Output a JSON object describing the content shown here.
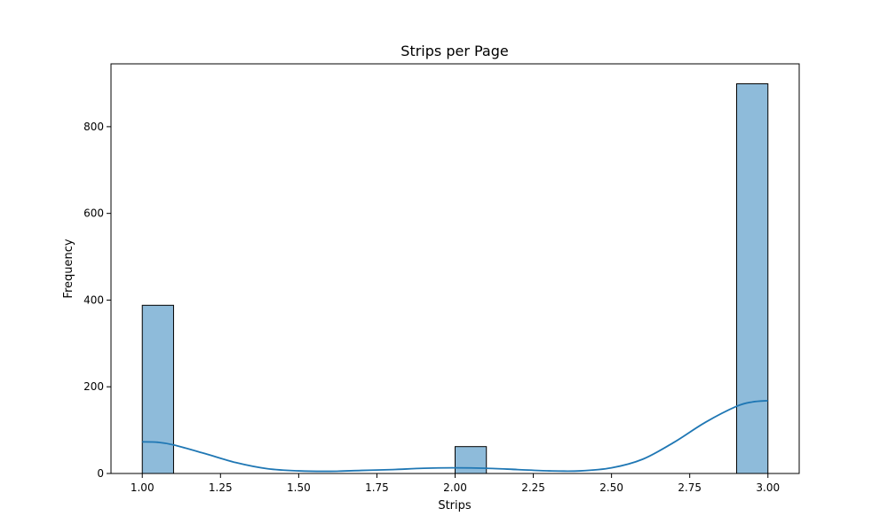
{
  "chart_data": {
    "type": "bar",
    "title": "Strips per Page",
    "xlabel": "Strips",
    "ylabel": "Frequency",
    "xlim": [
      0.9,
      3.1
    ],
    "ylim": [
      0,
      945
    ],
    "xticks": [
      "1.00",
      "1.25",
      "1.50",
      "1.75",
      "2.00",
      "2.25",
      "2.50",
      "2.75",
      "3.00"
    ],
    "yticks": [
      "0",
      "200",
      "400",
      "600",
      "800"
    ],
    "bins": [
      {
        "x0": 1.0,
        "x1": 1.1,
        "value": 388
      },
      {
        "x0": 2.0,
        "x1": 2.1,
        "value": 62
      },
      {
        "x0": 2.9,
        "x1": 3.0,
        "value": 899
      }
    ],
    "kde": {
      "x": [
        1.0,
        1.05,
        1.1,
        1.2,
        1.3,
        1.4,
        1.5,
        1.6,
        1.7,
        1.8,
        1.9,
        2.0,
        2.1,
        2.2,
        2.3,
        2.4,
        2.5,
        2.6,
        2.7,
        2.8,
        2.9,
        2.95,
        3.0
      ],
      "y": [
        73,
        72,
        66,
        46,
        25,
        11,
        6,
        5,
        7,
        9,
        12,
        13,
        12,
        9,
        6,
        6,
        13,
        33,
        72,
        118,
        155,
        165,
        168
      ]
    },
    "bar_color": "#8ebbda",
    "line_color": "#1f77b4",
    "grid": false,
    "legend": false
  }
}
